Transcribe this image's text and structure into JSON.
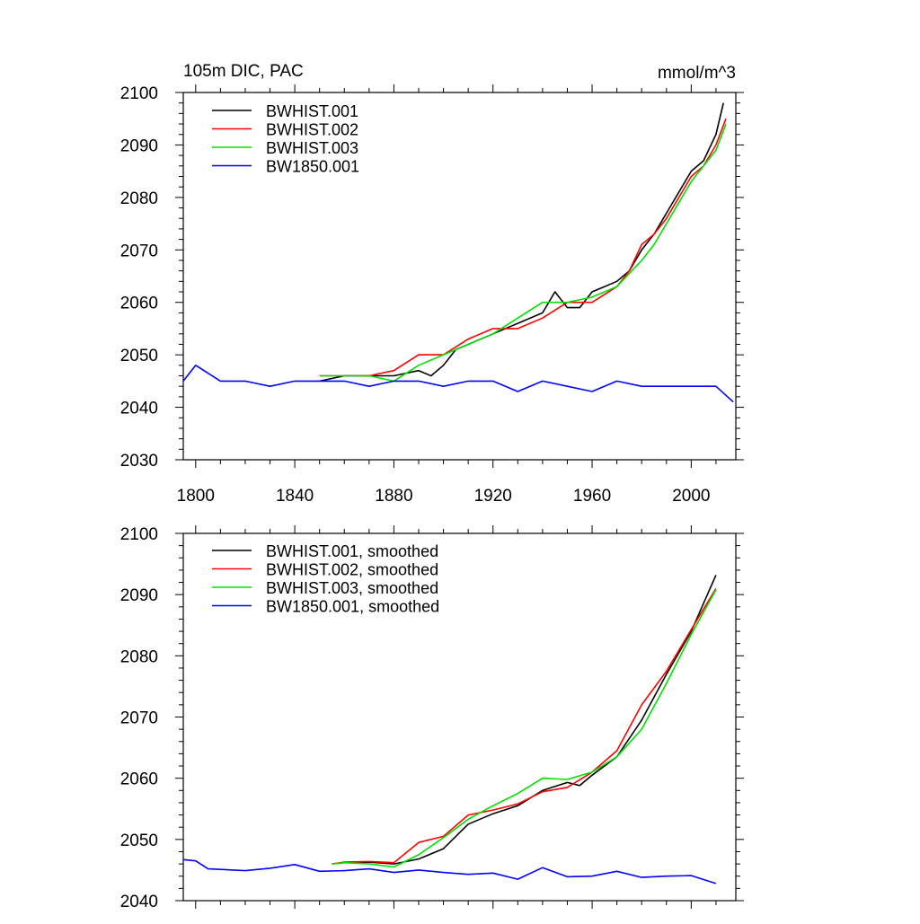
{
  "colors": {
    "BWHIST.001": "#000000",
    "BWHIST.002": "#ff0000",
    "BWHIST.003": "#00e000",
    "BW1850.001": "#0000ff"
  },
  "chart_data": [
    {
      "type": "line",
      "title": "105m DIC, PAC",
      "units": "mmol/m^3",
      "xlim": [
        1795,
        2018
      ],
      "ylim": [
        2030,
        2100
      ],
      "xticks": [
        "1800",
        "1840",
        "1880",
        "1920",
        "1960",
        "2000"
      ],
      "yticks": [
        "2030",
        "2040",
        "2050",
        "2060",
        "2070",
        "2080",
        "2090",
        "2100"
      ],
      "legend_placement": "top-left",
      "grid": false,
      "series": [
        {
          "name": "BWHIST.001",
          "color_key": "BWHIST.001",
          "x": [
            1850,
            1860,
            1870,
            1880,
            1890,
            1895,
            1900,
            1905,
            1910,
            1920,
            1930,
            1940,
            1945,
            1950,
            1955,
            1960,
            1965,
            1970,
            1975,
            1980,
            1985,
            1990,
            1995,
            2000,
            2005,
            2010,
            2013
          ],
          "y": [
            2045,
            2046,
            2046,
            2046,
            2047,
            2046,
            2048,
            2051,
            2052,
            2054,
            2056,
            2058,
            2062,
            2059,
            2059,
            2062,
            2063,
            2064,
            2066,
            2070,
            2073,
            2077,
            2081,
            2085,
            2087,
            2092,
            2098
          ]
        },
        {
          "name": "BWHIST.002",
          "color_key": "BWHIST.002",
          "x": [
            1850,
            1860,
            1870,
            1880,
            1890,
            1900,
            1910,
            1920,
            1930,
            1940,
            1950,
            1960,
            1970,
            1975,
            1980,
            1985,
            1990,
            1995,
            2000,
            2005,
            2010,
            2014
          ],
          "y": [
            2046,
            2046,
            2046,
            2047,
            2050,
            2050,
            2053,
            2055,
            2055,
            2057,
            2060,
            2060,
            2063,
            2066,
            2071,
            2073,
            2076,
            2080,
            2084,
            2086,
            2090,
            2095
          ]
        },
        {
          "name": "BWHIST.003",
          "color_key": "BWHIST.003",
          "x": [
            1850,
            1860,
            1870,
            1880,
            1890,
            1900,
            1910,
            1920,
            1930,
            1940,
            1950,
            1960,
            1970,
            1980,
            1985,
            1990,
            1995,
            2000,
            2005,
            2010,
            2014
          ],
          "y": [
            2046,
            2046,
            2046,
            2045,
            2048,
            2050,
            2052,
            2054,
            2057,
            2060,
            2060,
            2061,
            2063,
            2068,
            2071,
            2075,
            2079,
            2083,
            2086,
            2089,
            2094
          ]
        },
        {
          "name": "BW1850.001",
          "color_key": "BW1850.001",
          "x": [
            1795,
            1800,
            1810,
            1820,
            1830,
            1840,
            1850,
            1860,
            1870,
            1880,
            1890,
            1900,
            1910,
            1920,
            1930,
            1940,
            1950,
            1960,
            1970,
            1980,
            1990,
            2000,
            2010,
            2017
          ],
          "y": [
            2045,
            2048,
            2045,
            2045,
            2044,
            2045,
            2045,
            2045,
            2044,
            2045,
            2045,
            2044,
            2045,
            2045,
            2043,
            2045,
            2044,
            2043,
            2045,
            2044,
            2044,
            2044,
            2044,
            2041
          ]
        }
      ]
    },
    {
      "type": "line",
      "xlim": [
        1795,
        2018
      ],
      "ylim": [
        2040,
        2100
      ],
      "yticks": [
        "2040",
        "2050",
        "2060",
        "2070",
        "2080",
        "2090",
        "2100"
      ],
      "legend_placement": "top-left",
      "grid": false,
      "series": [
        {
          "name": "BWHIST.001, smoothed",
          "color_key": "BWHIST.001",
          "x": [
            1855,
            1860,
            1870,
            1880,
            1890,
            1900,
            1905,
            1910,
            1920,
            1930,
            1940,
            1950,
            1955,
            1960,
            1970,
            1980,
            1990,
            2000,
            2010
          ],
          "y": [
            2046.0,
            2046.2,
            2046.3,
            2046.0,
            2046.8,
            2048.5,
            2050.5,
            2052.5,
            2054.2,
            2055.5,
            2058.0,
            2059.3,
            2058.8,
            2060.5,
            2063.5,
            2069.5,
            2077.0,
            2084.0,
            2093.2
          ]
        },
        {
          "name": "BWHIST.002, smoothed",
          "color_key": "BWHIST.002",
          "x": [
            1855,
            1860,
            1870,
            1880,
            1890,
            1900,
            1910,
            1920,
            1930,
            1940,
            1950,
            1960,
            1970,
            1980,
            1990,
            2000,
            2010
          ],
          "y": [
            2046.0,
            2046.3,
            2046.4,
            2046.2,
            2049.5,
            2050.5,
            2054.0,
            2054.8,
            2055.8,
            2057.8,
            2058.5,
            2061.0,
            2064.5,
            2072.0,
            2077.5,
            2084.3,
            2091.0
          ]
        },
        {
          "name": "BWHIST.003, smoothed",
          "color_key": "BWHIST.003",
          "x": [
            1855,
            1860,
            1870,
            1880,
            1890,
            1900,
            1910,
            1920,
            1930,
            1940,
            1950,
            1960,
            1970,
            1980,
            1990,
            2000,
            2010
          ],
          "y": [
            2046.0,
            2046.2,
            2046.0,
            2045.5,
            2047.5,
            2050.3,
            2053.3,
            2055.5,
            2057.5,
            2060.0,
            2059.8,
            2061.0,
            2063.5,
            2068.0,
            2075.5,
            2083.5,
            2090.8
          ]
        },
        {
          "name": "BW1850.001, smoothed",
          "color_key": "BW1850.001",
          "x": [
            1795,
            1800,
            1805,
            1810,
            1820,
            1830,
            1840,
            1850,
            1860,
            1870,
            1880,
            1890,
            1900,
            1910,
            1920,
            1930,
            1940,
            1950,
            1960,
            1970,
            1980,
            1990,
            2000,
            2010
          ],
          "y": [
            2046.7,
            2046.5,
            2045.2,
            2045.1,
            2044.9,
            2045.3,
            2045.9,
            2044.8,
            2044.9,
            2045.2,
            2044.6,
            2045.0,
            2044.6,
            2044.3,
            2044.5,
            2043.5,
            2045.4,
            2043.9,
            2044.0,
            2044.8,
            2043.8,
            2044.0,
            2044.1,
            2042.8
          ]
        }
      ]
    }
  ]
}
